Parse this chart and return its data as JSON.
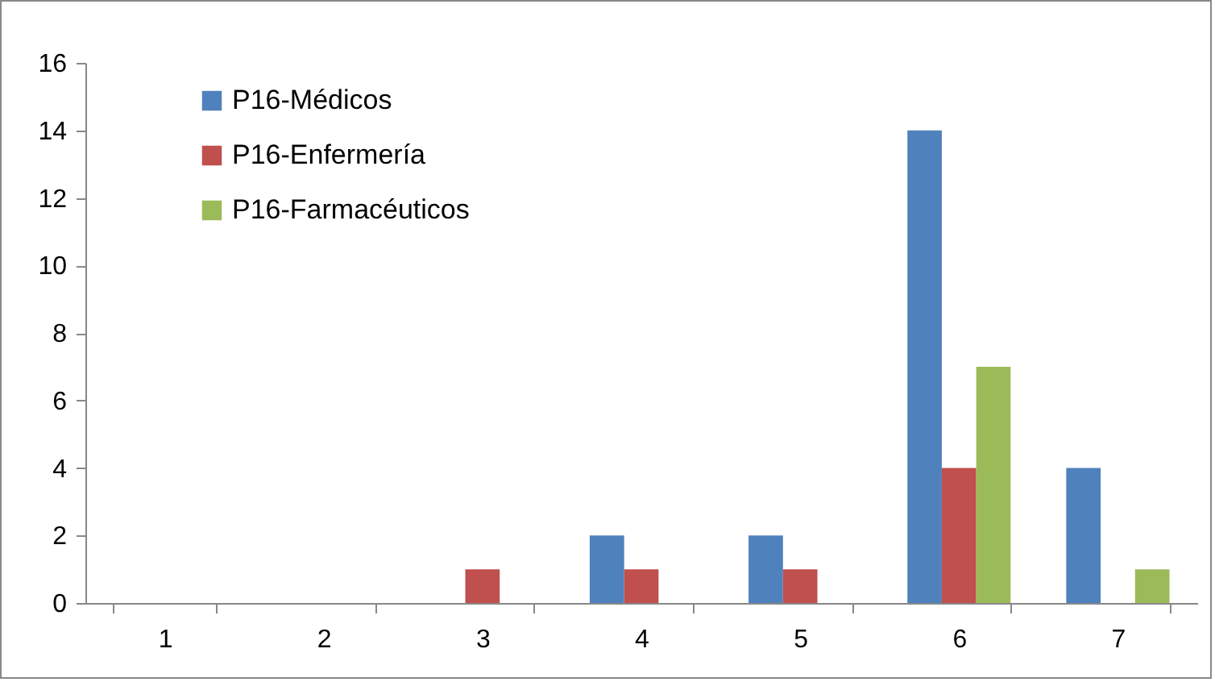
{
  "chart_data": {
    "type": "bar",
    "categories": [
      "1",
      "2",
      "3",
      "4",
      "5",
      "6",
      "7"
    ],
    "series": [
      {
        "name": "P16-Médicos",
        "color": "#4f81bd",
        "values": [
          0,
          0,
          0,
          2,
          2,
          14,
          4
        ]
      },
      {
        "name": "P16-Enfermería",
        "color": "#c0504d",
        "values": [
          0,
          0,
          1,
          1,
          1,
          4,
          0
        ]
      },
      {
        "name": "P16-Farmacéuticos",
        "color": "#9bbb59",
        "values": [
          0,
          0,
          0,
          0,
          0,
          7,
          1
        ]
      }
    ],
    "ylim": [
      0,
      16
    ],
    "yticks": [
      0,
      2,
      4,
      6,
      8,
      10,
      12,
      14,
      16
    ],
    "grid": false,
    "legend": "top left"
  }
}
